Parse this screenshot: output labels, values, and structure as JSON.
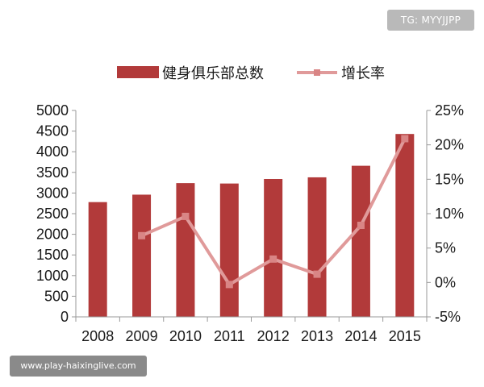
{
  "badge": {
    "text": "TG: MYYJJPP"
  },
  "watermark": {
    "text": "www.play-haixinglive.com"
  },
  "colors": {
    "bar": "#b23a3a",
    "line": "#e09a9a",
    "marker": "#d98585",
    "axis": "#999999"
  },
  "chart_data": {
    "type": "bar",
    "categories": [
      "2008",
      "2009",
      "2010",
      "2011",
      "2012",
      "2013",
      "2014",
      "2015"
    ],
    "series": [
      {
        "name": "健身俱乐部总数",
        "type": "bar",
        "axis": "left",
        "values": [
          2780,
          2960,
          3240,
          3230,
          3340,
          3380,
          3660,
          4430
        ]
      },
      {
        "name": "增长率",
        "type": "line",
        "axis": "right",
        "values": [
          null,
          6.8,
          9.6,
          -0.3,
          3.4,
          1.2,
          8.3,
          20.9
        ]
      }
    ],
    "y_left": {
      "lim": [
        0,
        5000
      ],
      "ticks": [
        "0",
        "500",
        "1000",
        "1500",
        "2000",
        "2500",
        "3000",
        "3500",
        "4000",
        "4500",
        "5000"
      ]
    },
    "y_right": {
      "lim": [
        -5,
        25
      ],
      "ticks": [
        "-5%",
        "0%",
        "5%",
        "10%",
        "15%",
        "20%",
        "25%"
      ]
    },
    "legend_position": "top",
    "grid": false
  }
}
